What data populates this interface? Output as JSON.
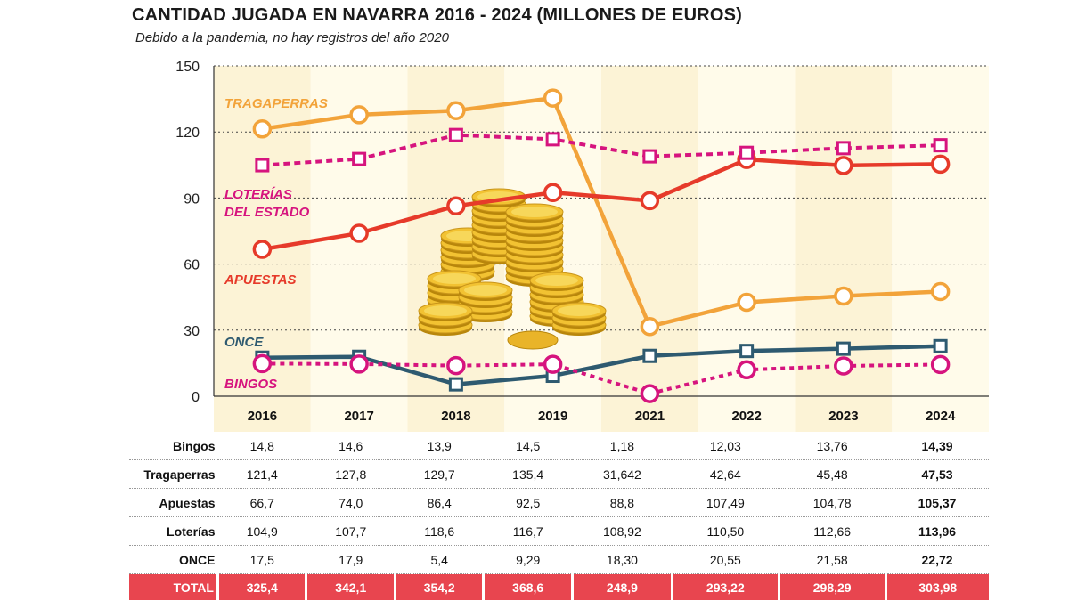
{
  "header": {
    "title": "CANTIDAD JUGADA EN NAVARRA 2016 - 2024 (MILLONES DE EUROS)",
    "subtitle": "Debido a la pandemia, no hay registros del año 2020"
  },
  "chart_data": {
    "type": "line",
    "title": "CANTIDAD JUGADA EN NAVARRA 2016 - 2024 (MILLONES DE EUROS)",
    "categories": [
      "2016",
      "2017",
      "2018",
      "2019",
      "2021",
      "2022",
      "2023",
      "2024"
    ],
    "ylim": [
      0,
      150
    ],
    "yticks": [
      "0",
      "30",
      "60",
      "90",
      "120",
      "150"
    ],
    "grid": true,
    "series": [
      {
        "name": "Tragaperras",
        "label": "TRAGAPERRAS",
        "color": "#f2a33a",
        "marker": "circle",
        "dashed": false,
        "values": [
          121.4,
          127.8,
          129.7,
          135.4,
          31.642,
          42.64,
          45.48,
          47.53
        ]
      },
      {
        "name": "Loterías",
        "label": "LOTERÍAS DEL ESTADO",
        "color": "#d6147e",
        "marker": "square",
        "dashed": true,
        "values": [
          104.9,
          107.7,
          118.6,
          116.7,
          108.92,
          110.5,
          112.66,
          113.96
        ]
      },
      {
        "name": "Apuestas",
        "label": "APUESTAS",
        "color": "#e63a2a",
        "marker": "circle",
        "dashed": false,
        "values": [
          66.7,
          74.0,
          86.4,
          92.5,
          88.8,
          107.49,
          104.78,
          105.37
        ]
      },
      {
        "name": "ONCE",
        "label": "ONCE",
        "color": "#2e5a70",
        "marker": "square",
        "dashed": false,
        "values": [
          17.5,
          17.9,
          5.4,
          9.29,
          18.3,
          20.55,
          21.58,
          22.72
        ]
      },
      {
        "name": "Bingos",
        "label": "BINGOS",
        "color": "#d6147e",
        "marker": "circle",
        "dashed": true,
        "values": [
          14.8,
          14.6,
          13.9,
          14.5,
          1.18,
          12.03,
          13.76,
          14.39
        ]
      }
    ]
  },
  "table": {
    "headers": [
      "2016",
      "2017",
      "2018",
      "2019",
      "2021",
      "2022",
      "2023",
      "2024"
    ],
    "rows": [
      {
        "label": "Bingos",
        "cells": [
          "14,8",
          "14,6",
          "13,9",
          "14,5",
          "1,18",
          "12,03",
          "13,76",
          "14,39"
        ]
      },
      {
        "label": "Tragaperras",
        "cells": [
          "121,4",
          "127,8",
          "129,7",
          "135,4",
          "31,642",
          "42,64",
          "45,48",
          "47,53"
        ]
      },
      {
        "label": "Apuestas",
        "cells": [
          "66,7",
          "74,0",
          "86,4",
          "92,5",
          "88,8",
          "107,49",
          "104,78",
          "105,37"
        ]
      },
      {
        "label": "Loterías",
        "cells": [
          "104,9",
          "107,7",
          "118,6",
          "116,7",
          "108,92",
          "110,50",
          "112,66",
          "113,96"
        ]
      },
      {
        "label": "ONCE",
        "cells": [
          "17,5",
          "17,9",
          "5,4",
          "9,29",
          "18,30",
          "20,55",
          "21,58",
          "22,72"
        ]
      }
    ],
    "total": {
      "label": "TOTAL",
      "cells": [
        "325,4",
        "342,1",
        "354,2",
        "368,6",
        "248,9",
        "293,22",
        "298,29",
        "303,98"
      ]
    }
  }
}
